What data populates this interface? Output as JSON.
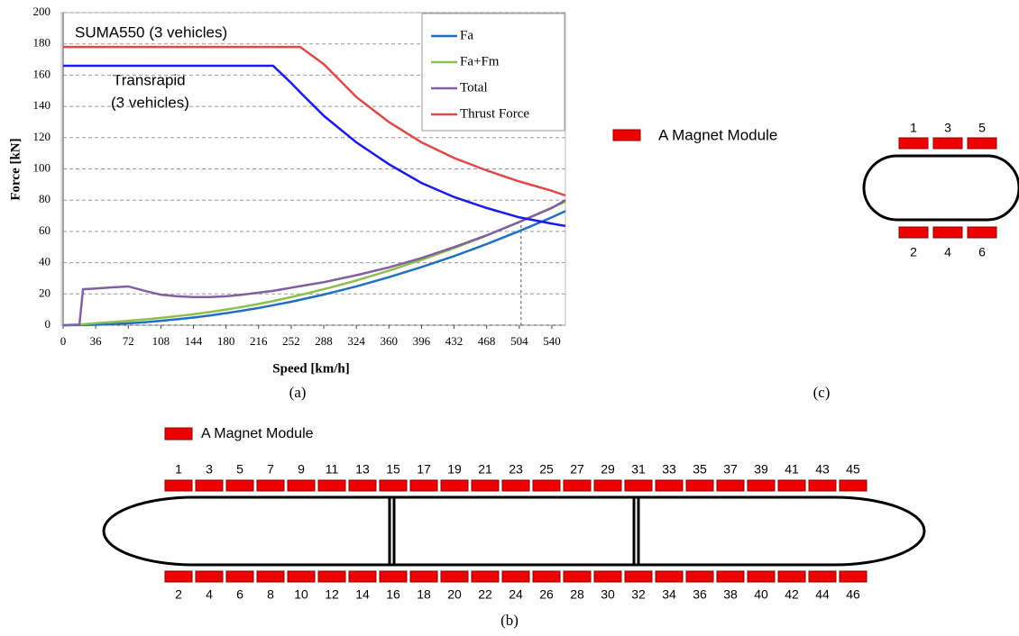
{
  "chart_data": {
    "type": "line",
    "x_label": "Speed [km/h]",
    "y_label": "Force [kN]",
    "annotations": [
      "SUMA550 (3 vehicles)",
      "Transrapid",
      "(3 vehicles)"
    ],
    "x": [
      0,
      18,
      22,
      36,
      54,
      72,
      90,
      108,
      126,
      144,
      162,
      180,
      198,
      216,
      232,
      252,
      262,
      288,
      324,
      360,
      396,
      432,
      468,
      504,
      540,
      555
    ],
    "series": [
      {
        "name": "Fa",
        "color": "#1f6fc4",
        "values": [
          0,
          0.1,
          0.1,
          0.3,
          0.7,
          1.2,
          1.9,
          2.8,
          3.8,
          4.9,
          6.2,
          7.7,
          9.3,
          11,
          12.8,
          15,
          16.3,
          19.6,
          24.8,
          30.7,
          37.2,
          44.2,
          51.9,
          60.2,
          69,
          73
        ]
      },
      {
        "name": "Fa+Fm",
        "color": "#8fbe4f",
        "values": [
          0,
          0.5,
          0.6,
          1.3,
          2,
          2.8,
          3.7,
          4.7,
          5.8,
          7,
          8.4,
          10,
          11.7,
          13.6,
          15.4,
          18,
          19.3,
          23,
          28.6,
          34.9,
          41.8,
          49.3,
          57.4,
          66.1,
          75.3,
          79
        ]
      },
      {
        "name": "Total",
        "color": "#8060a0",
        "values": [
          0,
          0.3,
          23,
          23.5,
          24.2,
          24.8,
          22,
          19.5,
          18.5,
          18,
          18,
          18.5,
          19.5,
          20.8,
          22,
          24,
          25,
          27.5,
          32,
          37,
          43,
          50,
          57.5,
          66,
          75,
          80
        ]
      },
      {
        "name": "Thrust Force",
        "color": "#e04848",
        "values": [
          178,
          178,
          178,
          178,
          178,
          178,
          178,
          178,
          178,
          178,
          178,
          178,
          178,
          178,
          178,
          178,
          178,
          167,
          146,
          130,
          117,
          107,
          99,
          92,
          86,
          83
        ]
      },
      {
        "color": "#1a1aee",
        "values": [
          166,
          166,
          166,
          166,
          166,
          166,
          166,
          166,
          166,
          166,
          166,
          166,
          166,
          166,
          166,
          155,
          149,
          134,
          117,
          103,
          91,
          82,
          75,
          69,
          65,
          63.5
        ]
      }
    ],
    "xlim": [
      0,
      555
    ],
    "xticks": [
      0,
      36,
      72,
      108,
      144,
      180,
      216,
      252,
      288,
      324,
      360,
      396,
      432,
      468,
      504,
      540
    ],
    "ylim": [
      0,
      200
    ],
    "yticks": [
      0,
      20,
      40,
      60,
      80,
      100,
      120,
      140,
      160,
      180,
      200
    ],
    "grid": true,
    "legend": "top-right",
    "reference_line": {
      "x": 506,
      "y": 68
    }
  },
  "panel_labels": {
    "a": "(a)",
    "b": "(b)",
    "c": "(c)"
  },
  "diagram_b": {
    "legend": "A Magnet Module",
    "top_labels": [
      "1",
      "3",
      "5",
      "7",
      "9",
      "11",
      "13",
      "15",
      "17",
      "19",
      "21",
      "23",
      "25",
      "27",
      "29",
      "31",
      "33",
      "35",
      "37",
      "39",
      "41",
      "43",
      "45"
    ],
    "bottom_labels": [
      "2",
      "4",
      "6",
      "8",
      "10",
      "12",
      "14",
      "16",
      "18",
      "20",
      "22",
      "24",
      "26",
      "28",
      "30",
      "32",
      "34",
      "36",
      "38",
      "40",
      "42",
      "44",
      "46"
    ]
  },
  "diagram_c": {
    "legend": "A Magnet Module",
    "top_labels": [
      "1",
      "3",
      "5"
    ],
    "bottom_labels": [
      "2",
      "4",
      "6"
    ]
  }
}
